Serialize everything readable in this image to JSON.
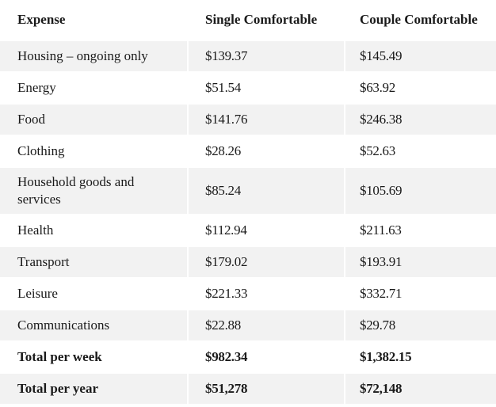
{
  "table": {
    "headers": [
      "Expense",
      "Single Comfortable",
      "Couple Comfortable"
    ],
    "rows": [
      {
        "label": "Housing – ongoing only",
        "single": "$139.37",
        "couple": "$145.49"
      },
      {
        "label": "Energy",
        "single": "$51.54",
        "couple": "$63.92"
      },
      {
        "label": "Food",
        "single": "$141.76",
        "couple": "$246.38"
      },
      {
        "label": "Clothing",
        "single": "$28.26",
        "couple": "$52.63"
      },
      {
        "label": "Household goods and services",
        "single": "$85.24",
        "couple": "$105.69"
      },
      {
        "label": "Health",
        "single": "$112.94",
        "couple": "$211.63"
      },
      {
        "label": "Transport",
        "single": "$179.02",
        "couple": "$193.91"
      },
      {
        "label": "Leisure",
        "single": "$221.33",
        "couple": "$332.71"
      },
      {
        "label": "Communications",
        "single": "$22.88",
        "couple": "$29.78"
      },
      {
        "label": "Total per week",
        "single": "$982.34",
        "couple": "$1,382.15"
      },
      {
        "label": "Total per year",
        "single": "$51,278",
        "couple": "$72,148"
      }
    ]
  },
  "colors": {
    "stripe": "#f2f2f2",
    "background": "#ffffff",
    "text": "#1a1a1a"
  }
}
